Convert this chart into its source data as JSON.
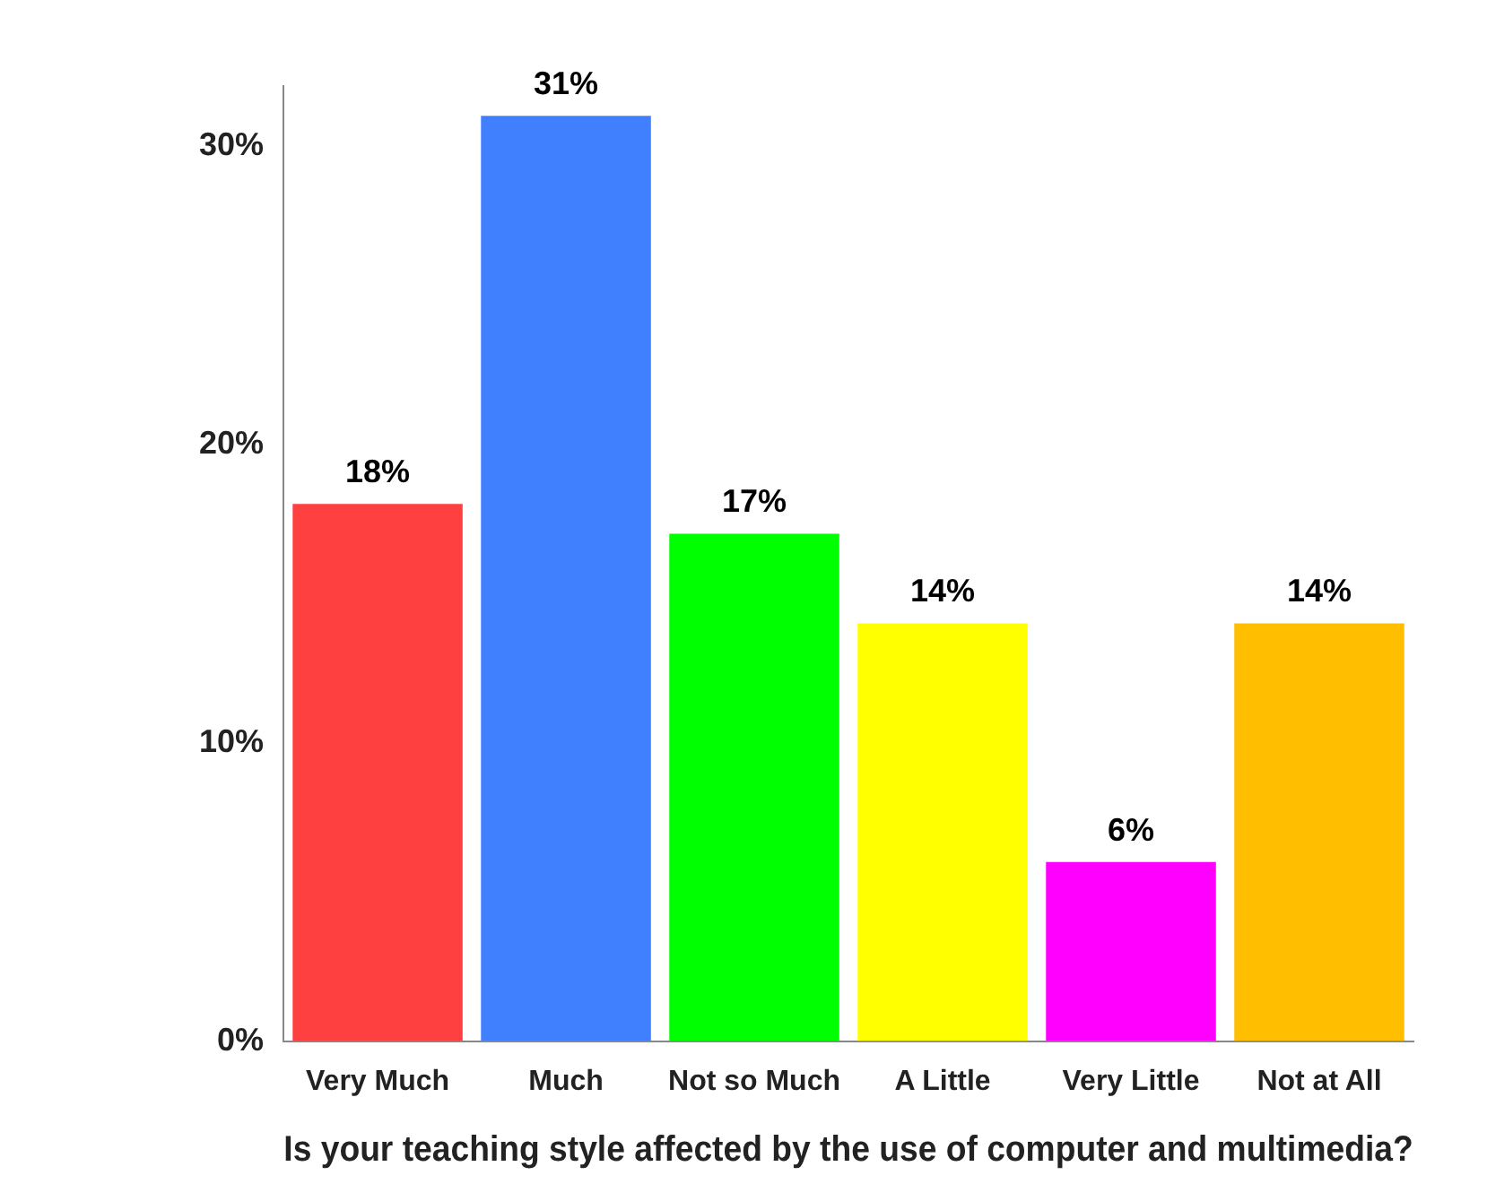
{
  "chart_data": {
    "type": "bar",
    "xlabel": "Is your teaching style affected by the use of computer and multimedia?",
    "categories": [
      "Very Much",
      "Much",
      "Not so Much",
      "A Little",
      "Very Little",
      "Not at All"
    ],
    "values": [
      18,
      31,
      17,
      14,
      6,
      14
    ],
    "value_labels": [
      "18%",
      "31%",
      "17%",
      "14%",
      "6%",
      "14%"
    ],
    "colors": [
      "#ff4040",
      "#4080ff",
      "#00ff00",
      "#ffff00",
      "#ff00ff",
      "#ffbf00"
    ],
    "ylim": [
      0,
      32
    ],
    "yticks": [
      {
        "value": 0,
        "label": "0%"
      },
      {
        "value": 10,
        "label": "10%"
      },
      {
        "value": 20,
        "label": "20%"
      },
      {
        "value": 30,
        "label": "30%"
      }
    ],
    "grid": false,
    "legend": false
  }
}
